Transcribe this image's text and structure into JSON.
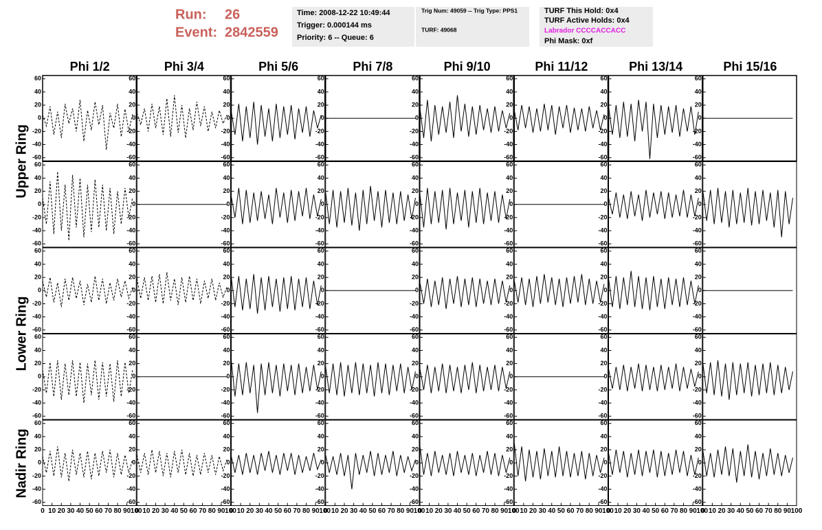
{
  "header": {
    "run_label": "Run:",
    "run": 26,
    "event_label": "Event:",
    "event": 2842559,
    "info_time": [
      "Time: 2008-12-22 10:49:44",
      "Trigger: 0.000144 ms",
      "Priority: 6 -- Queue: 6"
    ],
    "info_trig": [
      "Trig Num: 49059 -- Trig Type: PPS1",
      "TURF: 49068"
    ],
    "info_turf": [
      "TURF This Hold: 0x4",
      "TURF Active Holds: 0x4",
      "Labrador CCCCACCACC",
      "Phi Mask: 0xf"
    ]
  },
  "columns": [
    "Phi 1/2",
    "Phi 3/4",
    "Phi 5/6",
    "Phi 7/8",
    "Phi 9/10",
    "Phi 11/12",
    "Phi 13/14",
    "Phi 15/16"
  ],
  "rows": [
    "Upper Ring",
    "Lower Ring",
    "Nadir Ring"
  ],
  "panel_axes": {
    "xlim": [
      0,
      100
    ],
    "ylim": [
      -65,
      65
    ],
    "yticks": [
      -60,
      -40,
      -20,
      0,
      20,
      40,
      60
    ],
    "xticks": [
      0,
      10,
      20,
      30,
      40,
      50,
      60,
      70,
      80,
      90,
      100
    ],
    "x": [
      0,
      4,
      8,
      12,
      16,
      20,
      24,
      28,
      32,
      36,
      40,
      44,
      48,
      52,
      56,
      60,
      64,
      68,
      72,
      76,
      80,
      84,
      88,
      92,
      96
    ]
  },
  "chart_data": [
    {
      "type": "line",
      "style": "dashed",
      "values": [
        5,
        -12,
        18,
        -25,
        10,
        -30,
        22,
        -8,
        15,
        -20,
        28,
        -35,
        12,
        -18,
        25,
        -10,
        20,
        -48,
        8,
        -15,
        22,
        -28,
        14,
        -20,
        6
      ]
    },
    {
      "type": "line",
      "style": "dashed",
      "values": [
        8,
        -10,
        15,
        -20,
        22,
        -15,
        18,
        -25,
        30,
        -28,
        35,
        -22,
        20,
        -30,
        15,
        -18,
        25,
        -12,
        18,
        -20,
        10,
        -15,
        12,
        -8,
        5
      ]
    },
    {
      "type": "line",
      "style": "solid",
      "values": [
        10,
        -25,
        22,
        -35,
        18,
        -30,
        25,
        -40,
        20,
        -28,
        15,
        -35,
        22,
        -30,
        18,
        -25,
        20,
        -32,
        15,
        -22,
        18,
        -28,
        12,
        -15,
        5
      ]
    },
    {
      "type": "line",
      "style": "solid",
      "values": [
        0,
        0,
        0,
        0,
        0,
        0,
        0,
        0,
        0,
        0,
        0,
        0,
        0,
        0,
        0,
        0,
        0,
        0,
        0,
        0,
        0,
        0,
        0,
        0,
        0
      ]
    },
    {
      "type": "line",
      "style": "solid",
      "values": [
        15,
        -30,
        28,
        -35,
        20,
        -25,
        18,
        -22,
        25,
        -30,
        35,
        -20,
        22,
        -28,
        18,
        -25,
        20,
        -18,
        15,
        -22,
        18,
        -20,
        12,
        -15,
        8
      ]
    },
    {
      "type": "line",
      "style": "solid",
      "values": [
        12,
        -18,
        20,
        -15,
        18,
        -22,
        15,
        -20,
        22,
        -18,
        20,
        -25,
        18,
        -15,
        20,
        -22,
        16,
        -18,
        15,
        -20,
        18,
        -15,
        12,
        -18,
        6
      ]
    },
    {
      "type": "line",
      "style": "solid",
      "values": [
        18,
        -25,
        20,
        -30,
        25,
        -28,
        22,
        -35,
        28,
        -20,
        25,
        -62,
        22,
        -30,
        20,
        -25,
        18,
        -22,
        20,
        -28,
        15,
        -20,
        18,
        -25,
        10
      ]
    },
    {
      "type": "line",
      "style": "solid",
      "values": [
        0,
        0,
        0,
        0,
        0,
        0,
        0,
        0,
        0,
        0,
        0,
        0,
        0,
        0,
        0,
        0,
        0,
        0,
        0,
        0,
        0,
        0,
        0,
        0,
        0
      ]
    },
    {
      "type": "line",
      "style": "dashed",
      "values": [
        10,
        -30,
        35,
        -45,
        50,
        -40,
        30,
        -55,
        45,
        -35,
        40,
        -50,
        30,
        -42,
        38,
        -35,
        30,
        -40,
        25,
        -45,
        20,
        -30,
        25,
        -20,
        10
      ]
    },
    {
      "type": "line",
      "style": "solid",
      "values": [
        0,
        0,
        0,
        0,
        0,
        0,
        0,
        0,
        0,
        0,
        0,
        0,
        0,
        0,
        0,
        0,
        0,
        0,
        0,
        0,
        0,
        0,
        0,
        0,
        0
      ]
    },
    {
      "type": "line",
      "style": "solid",
      "values": [
        12,
        -20,
        25,
        -30,
        22,
        -28,
        18,
        -25,
        20,
        -22,
        15,
        -30,
        25,
        -20,
        18,
        -28,
        22,
        -25,
        20,
        -18,
        25,
        -22,
        15,
        -18,
        8
      ]
    },
    {
      "type": "line",
      "style": "solid",
      "values": [
        18,
        -30,
        22,
        -35,
        20,
        -28,
        25,
        -32,
        18,
        -40,
        22,
        -30,
        28,
        -25,
        20,
        -35,
        22,
        -28,
        18,
        -30,
        20,
        -25,
        15,
        -22,
        10
      ]
    },
    {
      "type": "line",
      "style": "solid",
      "values": [
        15,
        -35,
        25,
        -30,
        20,
        -28,
        22,
        -38,
        25,
        -30,
        18,
        -25,
        22,
        -35,
        20,
        -28,
        25,
        -30,
        18,
        -25,
        20,
        -28,
        15,
        -22,
        8
      ]
    },
    {
      "type": "line",
      "style": "solid",
      "values": [
        0,
        0,
        0,
        0,
        0,
        0,
        0,
        0,
        0,
        0,
        0,
        0,
        0,
        0,
        0,
        0,
        0,
        0,
        0,
        0,
        0,
        0,
        0,
        0,
        0
      ]
    },
    {
      "type": "line",
      "style": "solid",
      "values": [
        10,
        -15,
        18,
        -20,
        15,
        -22,
        20,
        -18,
        15,
        -25,
        22,
        -20,
        18,
        -15,
        20,
        -22,
        18,
        -20,
        15,
        -18,
        22,
        -20,
        15,
        -18,
        10
      ]
    },
    {
      "type": "line",
      "style": "solid",
      "values": [
        20,
        -25,
        22,
        -30,
        25,
        -28,
        20,
        -35,
        22,
        -30,
        18,
        -28,
        25,
        -32,
        20,
        -30,
        22,
        -25,
        18,
        -35,
        22,
        -50,
        20,
        -30,
        10
      ]
    },
    {
      "type": "line",
      "style": "dashed",
      "values": [
        15,
        -10,
        20,
        -18,
        12,
        -25,
        18,
        -15,
        20,
        -12,
        15,
        -22,
        10,
        -18,
        22,
        -15,
        18,
        -20,
        12,
        -15,
        18,
        -10,
        15,
        -12,
        5
      ]
    },
    {
      "type": "line",
      "style": "dashed",
      "values": [
        18,
        -12,
        20,
        -15,
        22,
        -18,
        25,
        -20,
        28,
        -15,
        18,
        -22,
        20,
        -18,
        22,
        -15,
        18,
        -20,
        15,
        -12,
        18,
        -15,
        12,
        -10,
        5
      ]
    },
    {
      "type": "line",
      "style": "solid",
      "values": [
        20,
        -25,
        22,
        -30,
        18,
        -28,
        25,
        -35,
        20,
        -30,
        22,
        -25,
        18,
        -32,
        20,
        -28,
        22,
        -30,
        18,
        -25,
        20,
        -28,
        15,
        -22,
        8
      ]
    },
    {
      "type": "line",
      "style": "solid",
      "values": [
        0,
        0,
        0,
        0,
        0,
        0,
        0,
        0,
        0,
        0,
        0,
        0,
        0,
        0,
        0,
        0,
        0,
        0,
        0,
        0,
        0,
        0,
        0,
        0,
        0
      ]
    },
    {
      "type": "line",
      "style": "solid",
      "values": [
        12,
        -20,
        18,
        -25,
        15,
        -22,
        20,
        -28,
        18,
        -20,
        22,
        -25,
        18,
        -22,
        20,
        -25,
        18,
        -20,
        15,
        -22,
        18,
        -20,
        15,
        -18,
        8
      ]
    },
    {
      "type": "line",
      "style": "solid",
      "values": [
        15,
        -18,
        20,
        -22,
        18,
        -25,
        22,
        -20,
        25,
        -18,
        20,
        -22,
        18,
        -25,
        20,
        -20,
        22,
        -18,
        25,
        -22,
        18,
        -20,
        15,
        -18,
        10
      ]
    },
    {
      "type": "line",
      "style": "solid",
      "values": [
        18,
        -25,
        22,
        -28,
        20,
        -22,
        30,
        -25,
        22,
        -28,
        20,
        -30,
        22,
        -25,
        18,
        -28,
        20,
        -22,
        18,
        -25,
        20,
        -22,
        15,
        -20,
        8
      ]
    },
    {
      "type": "line",
      "style": "solid",
      "values": [
        0,
        0,
        0,
        0,
        0,
        0,
        0,
        0,
        0,
        0,
        0,
        0,
        0,
        0,
        0,
        0,
        0,
        0,
        0,
        0,
        0,
        0,
        0,
        0,
        0
      ]
    },
    {
      "type": "line",
      "style": "dashed",
      "values": [
        10,
        -25,
        22,
        -30,
        25,
        -35,
        20,
        -28,
        25,
        -30,
        22,
        -40,
        20,
        -28,
        25,
        -35,
        22,
        -30,
        20,
        -38,
        25,
        -30,
        22,
        -25,
        10
      ]
    },
    {
      "type": "line",
      "style": "solid",
      "values": [
        0,
        0,
        0,
        0,
        0,
        0,
        0,
        0,
        0,
        0,
        0,
        0,
        0,
        0,
        0,
        0,
        0,
        0,
        0,
        0,
        0,
        0,
        0,
        0,
        0
      ]
    },
    {
      "type": "line",
      "style": "solid",
      "values": [
        25,
        -30,
        20,
        -28,
        22,
        -25,
        18,
        -55,
        20,
        -28,
        22,
        -25,
        18,
        -30,
        20,
        -22,
        18,
        -28,
        20,
        -25,
        15,
        -22,
        18,
        -20,
        8
      ]
    },
    {
      "type": "line",
      "style": "solid",
      "values": [
        15,
        -25,
        20,
        -28,
        22,
        -30,
        18,
        -25,
        22,
        -28,
        20,
        -25,
        18,
        -30,
        22,
        -25,
        20,
        -28,
        18,
        -22,
        20,
        -25,
        15,
        -20,
        8
      ]
    },
    {
      "type": "line",
      "style": "solid",
      "values": [
        12,
        -20,
        18,
        -25,
        15,
        -22,
        20,
        -25,
        18,
        -22,
        15,
        -25,
        18,
        -20,
        22,
        -25,
        18,
        -22,
        15,
        -20,
        18,
        -22,
        15,
        -18,
        8
      ]
    },
    {
      "type": "line",
      "style": "solid",
      "values": [
        0,
        0,
        0,
        0,
        0,
        0,
        0,
        0,
        0,
        0,
        0,
        0,
        0,
        0,
        0,
        0,
        0,
        0,
        0,
        0,
        0,
        0,
        0,
        0,
        0
      ]
    },
    {
      "type": "line",
      "style": "solid",
      "values": [
        12,
        -18,
        15,
        -20,
        18,
        -22,
        15,
        -18,
        20,
        -22,
        18,
        -20,
        15,
        -22,
        18,
        -20,
        15,
        -18,
        20,
        -22,
        15,
        -18,
        12,
        -15,
        8
      ]
    },
    {
      "type": "line",
      "style": "solid",
      "values": [
        20,
        -25,
        22,
        -28,
        25,
        -30,
        20,
        -35,
        22,
        -28,
        20,
        -25,
        22,
        -30,
        18,
        -28,
        20,
        -25,
        22,
        -28,
        18,
        -25,
        15,
        -20,
        8
      ]
    },
    {
      "type": "line",
      "style": "dashed",
      "values": [
        10,
        -15,
        18,
        -20,
        25,
        -22,
        15,
        -28,
        20,
        -18,
        15,
        -22,
        18,
        -25,
        15,
        -20,
        18,
        -15,
        20,
        -22,
        15,
        -18,
        12,
        -15,
        5
      ]
    },
    {
      "type": "line",
      "style": "dashed",
      "values": [
        12,
        -15,
        15,
        -18,
        20,
        -15,
        18,
        -20,
        15,
        -22,
        18,
        -15,
        20,
        -18,
        15,
        -20,
        12,
        -18,
        15,
        -15,
        12,
        -18,
        10,
        -12,
        5
      ]
    },
    {
      "type": "line",
      "style": "solid",
      "values": [
        10,
        -15,
        12,
        -18,
        15,
        -15,
        12,
        -18,
        15,
        -12,
        18,
        -15,
        12,
        -18,
        15,
        -12,
        15,
        -18,
        12,
        -15,
        10,
        -12,
        15,
        -10,
        5
      ]
    },
    {
      "type": "line",
      "style": "solid",
      "values": [
        12,
        -15,
        10,
        -18,
        15,
        -20,
        12,
        -40,
        15,
        -18,
        12,
        -15,
        18,
        -20,
        15,
        -18,
        12,
        -15,
        18,
        -20,
        12,
        -15,
        10,
        -12,
        5
      ]
    },
    {
      "type": "line",
      "style": "solid",
      "values": [
        25,
        -18,
        15,
        -20,
        18,
        -15,
        12,
        -18,
        15,
        -20,
        18,
        -15,
        12,
        -18,
        15,
        -20,
        12,
        -15,
        18,
        -18,
        15,
        -20,
        12,
        -15,
        8
      ]
    },
    {
      "type": "line",
      "style": "solid",
      "values": [
        30,
        -20,
        25,
        -28,
        20,
        -22,
        18,
        -25,
        22,
        -20,
        18,
        -22,
        25,
        -20,
        18,
        -22,
        15,
        -20,
        18,
        -25,
        15,
        -20,
        12,
        -15,
        8
      ]
    },
    {
      "type": "line",
      "style": "solid",
      "values": [
        15,
        -18,
        20,
        -15,
        18,
        -22,
        15,
        -18,
        20,
        -20,
        18,
        -15,
        20,
        -22,
        18,
        -20,
        15,
        -18,
        20,
        -15,
        18,
        -20,
        12,
        -18,
        8
      ]
    },
    {
      "type": "line",
      "style": "solid",
      "values": [
        18,
        -20,
        15,
        -22,
        20,
        -18,
        25,
        -20,
        22,
        -30,
        18,
        -20,
        28,
        -22,
        18,
        -25,
        15,
        -20,
        22,
        -18,
        15,
        -20,
        12,
        -15,
        8
      ]
    }
  ]
}
